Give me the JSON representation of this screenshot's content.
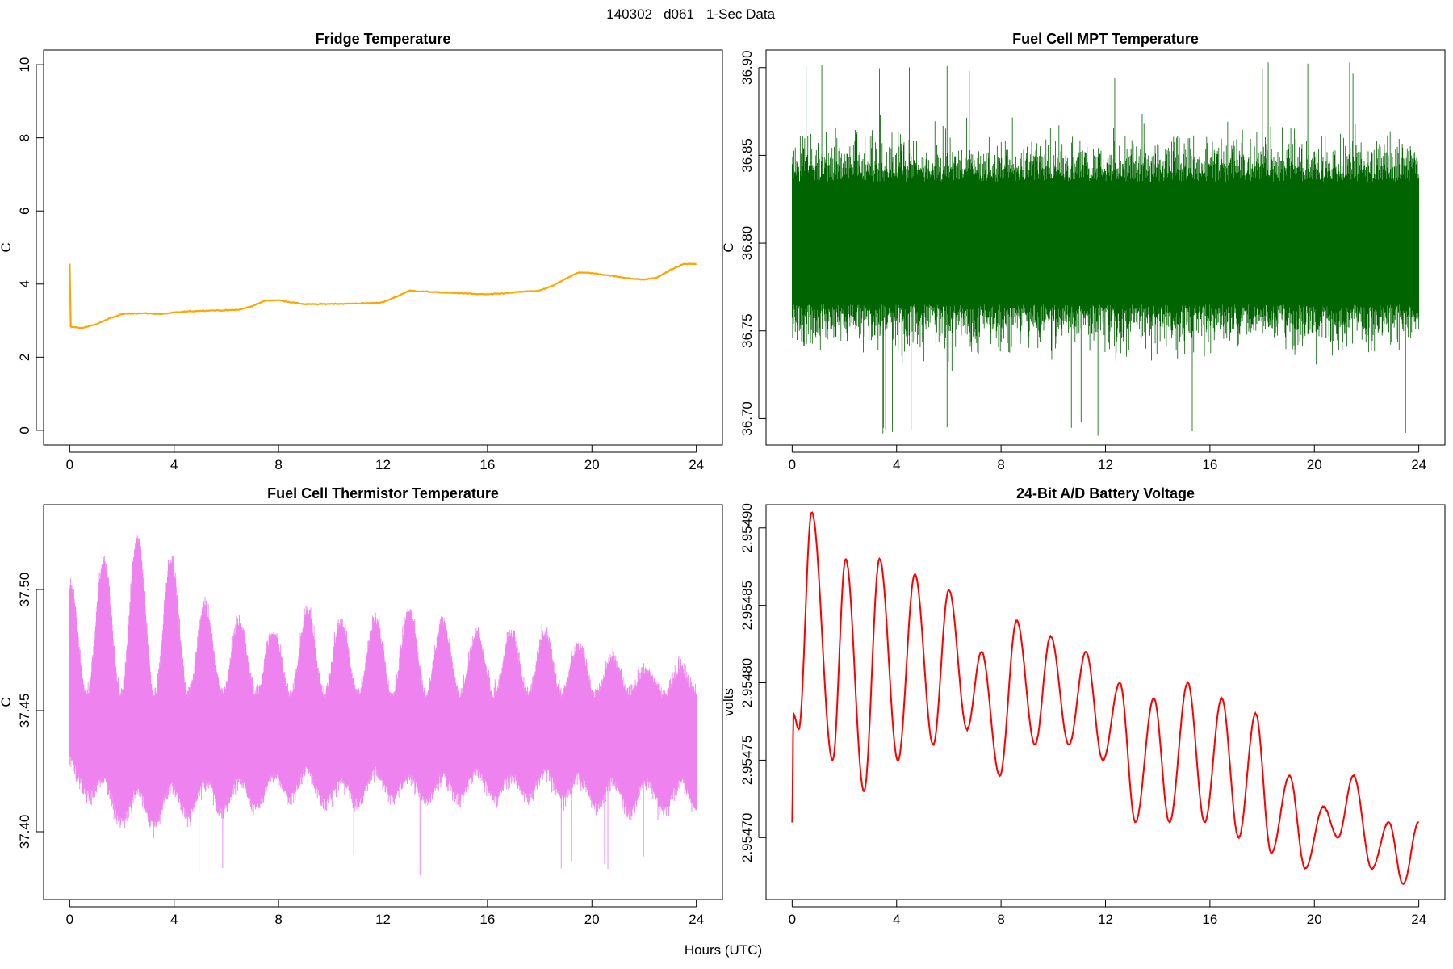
{
  "figure": {
    "title_id": "140302",
    "title_station": "d061",
    "title_desc": "1-Sec Data",
    "xlabel": "Hours (UTC)"
  },
  "chart_data": [
    {
      "type": "line",
      "title": "Fridge Temperature",
      "xlabel": "Hours (UTC)",
      "ylabel": "C",
      "color": "#ffa500",
      "style": "smooth",
      "xlim": [
        -1,
        25
      ],
      "ylim": [
        -0.4,
        10.4
      ],
      "xticks": [
        "0",
        "4",
        "8",
        "12",
        "16",
        "20",
        "24"
      ],
      "yticks": [
        "0",
        "2",
        "4",
        "6",
        "8",
        "10"
      ],
      "series": [
        {
          "name": "fridge",
          "x": [
            0,
            0.02,
            0.05,
            0.5,
            1,
            1.5,
            2,
            2.5,
            3,
            3.5,
            4,
            4.5,
            5,
            5.5,
            6,
            6.5,
            7,
            7.5,
            8,
            8.5,
            9,
            9.5,
            10,
            10.5,
            11,
            11.5,
            12,
            12.5,
            13,
            13.5,
            14,
            14.5,
            15,
            15.5,
            16,
            16.5,
            17,
            17.5,
            18,
            18.5,
            19,
            19.5,
            20,
            20.5,
            21,
            21.5,
            22,
            22.5,
            23,
            23.5,
            24
          ],
          "values": [
            4.55,
            2.85,
            2.83,
            2.8,
            2.9,
            3.05,
            3.18,
            3.2,
            3.2,
            3.18,
            3.22,
            3.25,
            3.27,
            3.28,
            3.28,
            3.3,
            3.4,
            3.55,
            3.56,
            3.5,
            3.45,
            3.45,
            3.46,
            3.46,
            3.47,
            3.48,
            3.5,
            3.65,
            3.82,
            3.8,
            3.78,
            3.76,
            3.75,
            3.73,
            3.72,
            3.74,
            3.77,
            3.8,
            3.82,
            3.95,
            4.15,
            4.32,
            4.3,
            4.25,
            4.2,
            4.15,
            4.12,
            4.18,
            4.38,
            4.55,
            4.55
          ]
        }
      ]
    },
    {
      "type": "line",
      "title": "Fuel Cell MPT Temperature",
      "xlabel": "Hours (UTC)",
      "ylabel": "C",
      "color": "#006400",
      "style": "noise",
      "xlim": [
        -1,
        25
      ],
      "ylim": [
        36.685,
        36.91
      ],
      "xticks": [
        "0",
        "4",
        "8",
        "12",
        "16",
        "20",
        "24"
      ],
      "yticks": [
        "36.70",
        "36.75",
        "36.80",
        "36.85",
        "36.90"
      ],
      "series": [
        {
          "name": "mpt",
          "x": [
            0,
            24
          ],
          "center": [
            36.8,
            36.8
          ],
          "core_band": [
            36.765,
            36.835
          ],
          "envelope_min": [
            36.712,
            36.722
          ],
          "envelope_max": [
            36.884,
            36.884
          ],
          "extreme_min": 36.688,
          "extreme_max": 36.903
        }
      ]
    },
    {
      "type": "line",
      "title": "Fuel Cell Thermistor Temperature",
      "xlabel": "Hours (UTC)",
      "ylabel": "C",
      "color": "#ee82ee",
      "style": "oscillating-noise",
      "xlim": [
        -1,
        25
      ],
      "ylim": [
        37.372,
        37.535
      ],
      "xticks": [
        "0",
        "4",
        "8",
        "12",
        "16",
        "20",
        "24"
      ],
      "yticks": [
        "37.40",
        "37.45",
        "37.50"
      ],
      "series": [
        {
          "name": "thermistor",
          "x": [
            0,
            24
          ],
          "peaks_x": [
            0,
            1.3,
            2.6,
            3.9,
            5.2,
            6.5,
            7.8,
            9.1,
            10.4,
            11.7,
            13,
            14.3,
            15.6,
            16.9,
            18.2,
            19.5,
            20.8,
            22.1,
            23.4
          ],
          "peak_upper": [
            37.5,
            37.51,
            37.52,
            37.51,
            37.49,
            37.485,
            37.48,
            37.49,
            37.485,
            37.485,
            37.49,
            37.485,
            37.48,
            37.48,
            37.48,
            37.475,
            37.47,
            37.465,
            37.465
          ],
          "trough_lower": [
            37.42,
            37.4,
            37.39,
            37.395,
            37.4,
            37.4,
            37.405,
            37.41,
            37.4,
            37.41,
            37.405,
            37.405,
            37.41,
            37.405,
            37.41,
            37.405,
            37.4,
            37.4,
            37.4
          ],
          "extreme_max": 37.53,
          "extreme_min": 37.382
        }
      ]
    },
    {
      "type": "line",
      "title": "24-Bit A/D Battery Voltage",
      "xlabel": "Hours (UTC)",
      "ylabel": "volts",
      "color": "#ff0000",
      "style": "oscillation",
      "xlim": [
        -1,
        25
      ],
      "ylim": [
        2.95466,
        2.954915
      ],
      "xticks": [
        "0",
        "4",
        "8",
        "12",
        "16",
        "20",
        "24"
      ],
      "yticks": [
        "2.95470",
        "2.95475",
        "2.95480",
        "2.95485",
        "2.95490"
      ],
      "series": [
        {
          "name": "battery",
          "x": [
            0,
            0.05,
            0.25,
            0.75,
            1.55,
            2.05,
            2.75,
            3.35,
            4.05,
            4.7,
            5.4,
            6.0,
            6.7,
            7.25,
            7.95,
            8.6,
            9.3,
            9.9,
            10.6,
            11.25,
            11.9,
            12.55,
            13.15,
            13.85,
            14.45,
            15.15,
            15.8,
            16.45,
            17.1,
            17.75,
            18.35,
            19.05,
            19.65,
            20.35,
            20.9,
            21.5,
            22.2,
            22.85,
            23.4,
            24.0
          ],
          "values": [
            2.95471,
            2.95478,
            2.95477,
            2.95491,
            2.95475,
            2.95488,
            2.95473,
            2.95488,
            2.95475,
            2.95487,
            2.95476,
            2.95486,
            2.95477,
            2.95482,
            2.95474,
            2.95484,
            2.95476,
            2.95483,
            2.95476,
            2.95482,
            2.95475,
            2.9548,
            2.95471,
            2.95479,
            2.95471,
            2.9548,
            2.95471,
            2.95479,
            2.9547,
            2.95478,
            2.95469,
            2.95474,
            2.95468,
            2.95472,
            2.9547,
            2.95474,
            2.95468,
            2.95471,
            2.95467,
            2.95471
          ]
        }
      ]
    }
  ]
}
